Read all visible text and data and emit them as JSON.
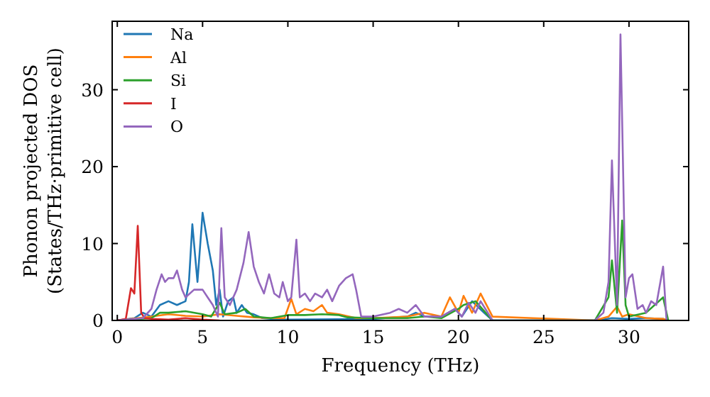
{
  "chart_data": {
    "type": "line",
    "xlabel": "Frequency (THz)",
    "ylabel": "Phonon projected DOS\n(States/THz·primitive cell)",
    "xlim": [
      -0.3,
      33.5
    ],
    "ylim": [
      0,
      38.9
    ],
    "xticks": [
      0,
      5,
      10,
      15,
      20,
      25,
      30
    ],
    "yticks": [
      0,
      10,
      20,
      30
    ],
    "grid": false,
    "legend": "top left",
    "marker": "none",
    "line_style": "solid",
    "series": [
      {
        "name": "Na",
        "color": "#1f77b4",
        "x": [
          0,
          1,
          1.5,
          2,
          2.5,
          3,
          3.5,
          4,
          4.2,
          4.4,
          4.7,
          5,
          5.3,
          5.6,
          5.8,
          6,
          6.2,
          6.5,
          6.8,
          7,
          7.3,
          7.6,
          8,
          8.5,
          9,
          10,
          15,
          17,
          17.5,
          18,
          19,
          19.8,
          20.2,
          20.8,
          21.5,
          22,
          28,
          29,
          30,
          31,
          32,
          32.3
        ],
        "values": [
          0,
          0.3,
          1,
          0.5,
          2,
          2.5,
          2,
          2.5,
          5,
          12.5,
          5,
          14,
          10,
          6.5,
          2,
          4,
          0.5,
          2.5,
          3,
          1,
          2,
          1,
          0.8,
          0.3,
          0.2,
          0.1,
          0.2,
          0.5,
          1,
          0.5,
          0.5,
          1.5,
          0.5,
          2.5,
          1,
          0,
          0,
          0.3,
          0.2,
          0.3,
          0.2,
          0
        ]
      },
      {
        "name": "Al",
        "color": "#ff7f0e",
        "x": [
          0,
          2,
          3,
          4,
          5,
          6,
          7,
          8,
          9,
          9.8,
          10.2,
          10.5,
          11,
          11.5,
          12,
          12.3,
          13,
          14,
          15,
          17,
          18,
          19,
          19.5,
          20,
          20.3,
          20.8,
          21.3,
          22,
          28,
          28.8,
          29.3,
          29.6,
          30,
          31,
          32,
          32.3
        ],
        "values": [
          0,
          0.5,
          0.8,
          0.6,
          0.5,
          0.8,
          0.6,
          0.4,
          0.3,
          0.3,
          2.8,
          0.8,
          1.5,
          1.2,
          2,
          1,
          0.8,
          0.3,
          0.3,
          0.5,
          1,
          0.5,
          3,
          1,
          3.2,
          1,
          3.5,
          0.5,
          0,
          0.5,
          1.8,
          0.5,
          0.8,
          0.3,
          0.2,
          0
        ]
      },
      {
        "name": "Si",
        "color": "#2ca02c",
        "x": [
          0,
          2,
          2.5,
          3,
          4,
          5,
          5.5,
          6,
          6.3,
          7,
          7.5,
          8,
          9,
          10,
          11,
          12,
          13,
          13.5,
          15,
          17,
          18,
          19,
          20,
          20.3,
          21,
          22,
          28,
          28.8,
          29,
          29.3,
          29.6,
          29.8,
          30,
          31,
          32,
          32.3
        ],
        "values": [
          0,
          0.3,
          1,
          1,
          1.2,
          0.8,
          0.5,
          2.3,
          0.8,
          1,
          1.5,
          0.5,
          0.3,
          0.7,
          0.7,
          0.8,
          0.7,
          0.4,
          0.3,
          0.3,
          0.5,
          0.3,
          1.5,
          2,
          2.5,
          0,
          0,
          3,
          7.8,
          1,
          13,
          2,
          0.5,
          1,
          3,
          0
        ]
      },
      {
        "name": "I",
        "color": "#d62728",
        "x": [
          0,
          0.5,
          0.8,
          1,
          1.2,
          1.4,
          1.6,
          2,
          3,
          4,
          5,
          6
        ],
        "values": [
          0,
          0.2,
          4.2,
          3.5,
          12.3,
          1,
          0.3,
          0.2,
          0.1,
          0.3,
          0.1,
          0
        ]
      },
      {
        "name": "O",
        "color": "#9467bd",
        "x": [
          0,
          1.5,
          2,
          2.3,
          2.6,
          2.8,
          3,
          3.3,
          3.5,
          3.8,
          4,
          4.5,
          5,
          5.3,
          5.6,
          5.9,
          6.1,
          6.3,
          6.6,
          7,
          7.4,
          7.7,
          8,
          8.3,
          8.6,
          8.9,
          9.2,
          9.5,
          9.7,
          10,
          10.2,
          10.5,
          10.7,
          11,
          11.3,
          11.6,
          12,
          12.3,
          12.6,
          13,
          13.4,
          13.8,
          14,
          14.3,
          15,
          16,
          16.5,
          17,
          17.5,
          18,
          19,
          19.8,
          20.2,
          20.6,
          21,
          21.3,
          22,
          28,
          28.5,
          28.8,
          29,
          29.3,
          29.5,
          29.8,
          30,
          30.2,
          30.5,
          30.8,
          31,
          31.3,
          31.6,
          32,
          32.2
        ],
        "values": [
          0,
          0.3,
          1.5,
          4,
          6,
          5,
          5.5,
          5.5,
          6.5,
          4,
          3,
          4,
          4,
          3,
          2,
          0.5,
          12,
          3,
          2,
          4,
          7.5,
          11.5,
          7,
          5,
          3.5,
          6,
          3.5,
          3,
          5,
          2.5,
          3,
          10.5,
          3,
          3.5,
          2.5,
          3.5,
          3,
          4,
          2.5,
          4.5,
          5.5,
          6,
          4,
          0.5,
          0.5,
          1,
          1.5,
          1,
          2,
          0.5,
          0.5,
          1.5,
          0.5,
          2.3,
          1,
          2.5,
          0,
          0,
          1,
          5,
          20.8,
          2,
          37.2,
          3,
          5.5,
          6,
          1.5,
          2,
          1,
          2.5,
          2,
          7,
          0
        ]
      }
    ]
  }
}
